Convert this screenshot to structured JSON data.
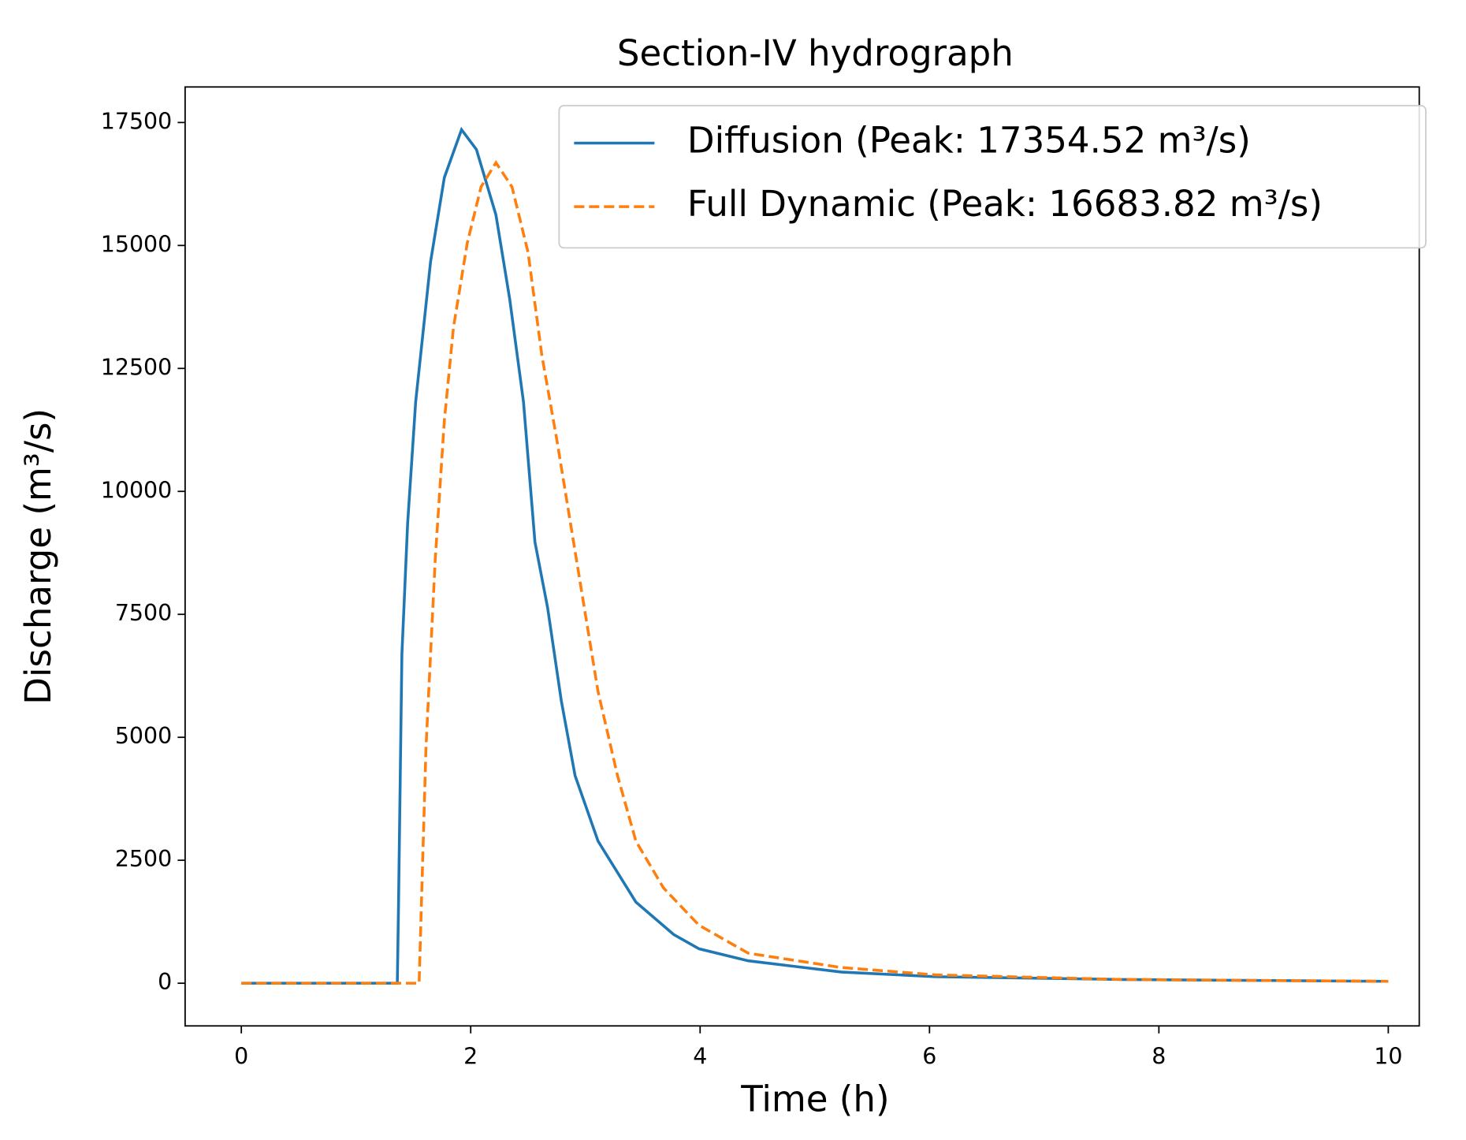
{
  "chart_data": {
    "type": "line",
    "title": "Section-IV hydrograph",
    "x_label": "Time (h)",
    "y_label": "Discharge (m³/s)",
    "xlim": [
      -0.49,
      10.27
    ],
    "ylim": [
      -867.73,
      18222.25
    ],
    "xticks": [
      0,
      2,
      4,
      6,
      8,
      10
    ],
    "yticks": [
      0,
      2500,
      5000,
      7500,
      10000,
      12500,
      15000,
      17500
    ],
    "legend": "upper right",
    "series": [
      {
        "name": "Diffusion  (Peak: 17354.52 m³/s)",
        "color": "#1f77b4",
        "style": "solid",
        "x": [
          0,
          1.36,
          1.37,
          1.4,
          1.45,
          1.52,
          1.65,
          1.77,
          1.92,
          2.05,
          2.22,
          2.34,
          2.46,
          2.56,
          2.67,
          2.79,
          2.91,
          3.11,
          3.44,
          3.77,
          3.99,
          4.42,
          5.23,
          6.05,
          7.68,
          10
        ],
        "values": [
          0,
          0,
          1500,
          6690,
          9350,
          11820,
          14670,
          16380,
          17354.52,
          16950,
          15620,
          13910,
          11820,
          8970,
          7640,
          5740,
          4220,
          2890,
          1650,
          990,
          700,
          456,
          228,
          133,
          76,
          38
        ]
      },
      {
        "name": "Full Dynamic  (Peak: 16683.82 m³/s)",
        "color": "#ff7f0e",
        "style": "dashed",
        "x": [
          0,
          1.55,
          1.61,
          1.69,
          1.77,
          1.85,
          1.97,
          2.09,
          2.22,
          2.36,
          2.5,
          2.62,
          2.75,
          2.87,
          2.99,
          3.11,
          3.28,
          3.44,
          3.68,
          3.99,
          4.42,
          5.23,
          6.05,
          7.68,
          10
        ],
        "values": [
          0,
          0,
          4790,
          8590,
          11440,
          13340,
          15050,
          16190,
          16683.82,
          16190,
          14860,
          12770,
          11060,
          9350,
          7640,
          5930,
          4220,
          2890,
          1940,
          1180,
          610,
          320,
          170,
          76,
          38
        ]
      }
    ]
  }
}
